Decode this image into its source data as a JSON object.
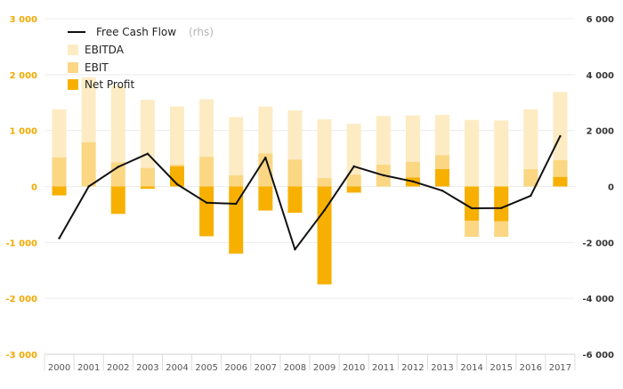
{
  "chart_data": {
    "type": "bar",
    "categories": [
      "2000",
      "2001",
      "2002",
      "2003",
      "2004",
      "2005",
      "2006",
      "2007",
      "2008",
      "2009",
      "2010",
      "2011",
      "2012",
      "2013",
      "2014",
      "2015",
      "2016",
      "2017"
    ],
    "series": [
      {
        "name": "EBITDA",
        "kind": "bar",
        "axis": "left",
        "color": "#fdebc3",
        "values": [
          1380,
          1950,
          1800,
          1550,
          1430,
          1560,
          1240,
          1430,
          1360,
          1200,
          1120,
          1260,
          1270,
          1280,
          1190,
          1180,
          1380,
          1690
        ]
      },
      {
        "name": "EBIT",
        "kind": "bar",
        "axis": "left",
        "color": "#fbd784",
        "values": [
          520,
          790,
          430,
          330,
          390,
          530,
          200,
          590,
          480,
          150,
          210,
          390,
          440,
          560,
          -900,
          -900,
          310,
          470
        ]
      },
      {
        "name": "Net Profit",
        "kind": "bar",
        "axis": "left",
        "color": "#f7b000",
        "values": [
          -160,
          0,
          -490,
          -40,
          360,
          -890,
          -1200,
          -430,
          -470,
          -1750,
          -110,
          0,
          160,
          310,
          -610,
          -620,
          0,
          170
        ]
      },
      {
        "name": "Free Cash Flow",
        "unit": "(rhs)",
        "kind": "line",
        "axis": "right",
        "color": "#111111",
        "values": [
          -1850,
          0,
          700,
          1170,
          80,
          -580,
          -620,
          1030,
          -2250,
          -850,
          720,
          400,
          180,
          -150,
          -780,
          -770,
          -330,
          1800
        ]
      }
    ],
    "yleft": {
      "ticks": [
        "3 000",
        "2 000",
        "1 000",
        "0",
        "-1 000",
        "-2 000",
        "-3 000"
      ],
      "range": [
        -3000,
        3000
      ],
      "color": "#f2a900"
    },
    "yright": {
      "ticks": [
        "6 000",
        "4 000",
        "2 000",
        "0",
        "-2 000",
        "-4 000",
        "-6 000"
      ],
      "range": [
        -6000,
        6000
      ],
      "color": "#333333"
    },
    "grid": true,
    "legend_position": "top-left"
  }
}
